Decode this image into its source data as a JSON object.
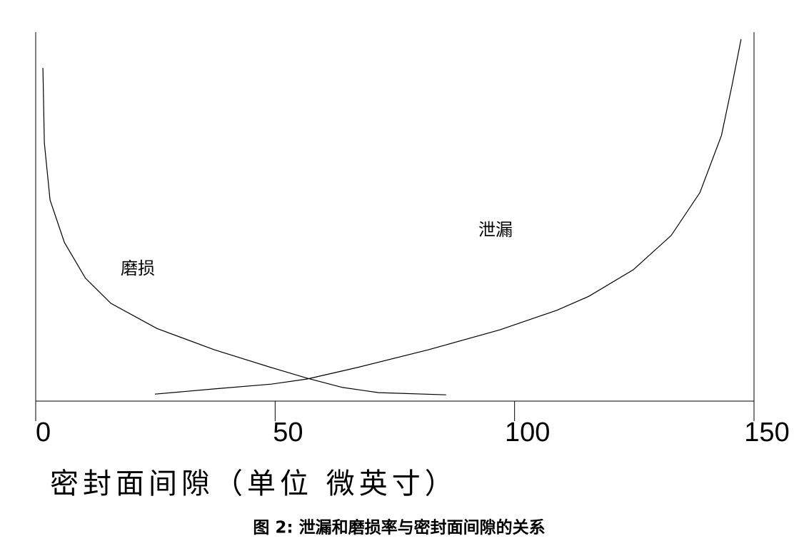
{
  "chart_data": {
    "type": "line",
    "xlabel": "密封面间隙（单位 微英寸）",
    "caption": "图 2: 泄漏和磨损率与密封面间隙的关系",
    "xlim": [
      0,
      150
    ],
    "xticks": [
      0,
      50,
      100,
      150
    ],
    "ylim": [
      0,
      100
    ],
    "series": [
      {
        "name": "磨损",
        "color": "#000000",
        "x": [
          1.5,
          1.8,
          3,
          6,
          10.4,
          15.7,
          25.3,
          37.3,
          49.2,
          56.7,
          64.1,
          71.6,
          85.7
        ],
        "values": [
          90.3,
          70,
          54.5,
          43,
          33.3,
          26.5,
          19.7,
          13.9,
          9.1,
          6.2,
          3.7,
          2.3,
          1.7
        ]
      },
      {
        "name": "泄漏",
        "color": "#000000",
        "x": [
          24.9,
          37.3,
          49.2,
          56.7,
          67.1,
          82,
          96.9,
          108.8,
          115.5,
          124.8,
          132.7,
          138.7,
          143.2,
          145.4,
          147.3
        ],
        "values": [
          1.9,
          3.3,
          4.6,
          6,
          9.1,
          13.9,
          19.3,
          24.6,
          28.4,
          35.6,
          44.9,
          56.5,
          72,
          85.5,
          98.1
        ]
      }
    ]
  }
}
